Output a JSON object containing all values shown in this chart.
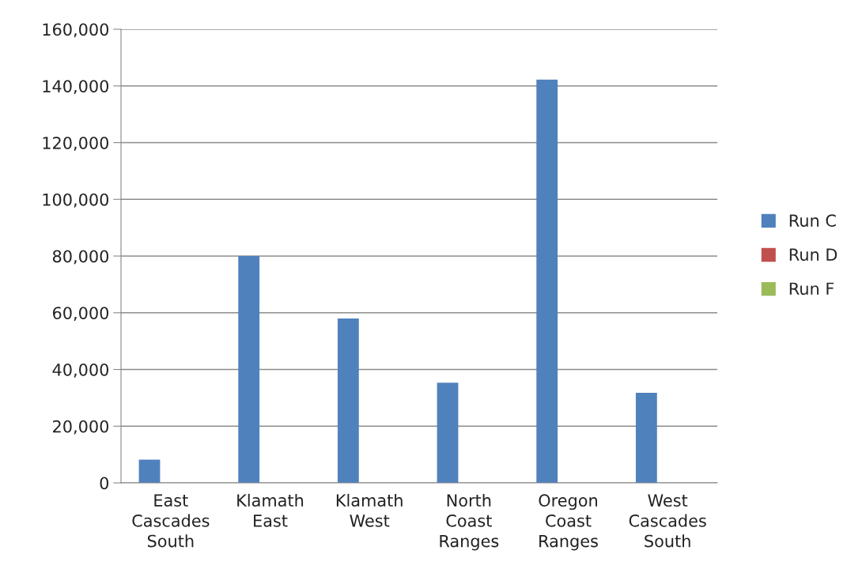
{
  "chart_data": {
    "type": "bar",
    "categories": [
      "East\nCascades\nSouth",
      "Klamath\nEast",
      "Klamath\nWest",
      "North\nCoast\nRanges",
      "Oregon\nCoast\nRanges",
      "West\nCascades\nSouth"
    ],
    "series": [
      {
        "name": "Run C",
        "color": "#4f81bd",
        "values": [
          8200,
          80000,
          58000,
          35300,
          142200,
          31800
        ]
      },
      {
        "name": "Run D",
        "color": "#c0504d",
        "values": [
          0,
          0,
          0,
          0,
          0,
          0
        ]
      },
      {
        "name": "Run F",
        "color": "#9bbb59",
        "values": [
          0,
          0,
          0,
          0,
          0,
          0
        ]
      }
    ],
    "ylim": [
      0,
      160000
    ],
    "yticks": [
      0,
      {
        "value": 20000,
        "label": "20,000"
      },
      {
        "value": 40000,
        "label": "40,000"
      },
      {
        "value": 60000,
        "label": "60,000"
      },
      {
        "value": 80000,
        "label": "80,000"
      },
      {
        "value": 100000,
        "label": "100,000"
      },
      {
        "value": 120000,
        "label": "120,000"
      },
      {
        "value": 140000,
        "label": "140,000"
      },
      {
        "value": 160000,
        "label": "160,000"
      }
    ],
    "grid": "y",
    "legend": "right"
  }
}
